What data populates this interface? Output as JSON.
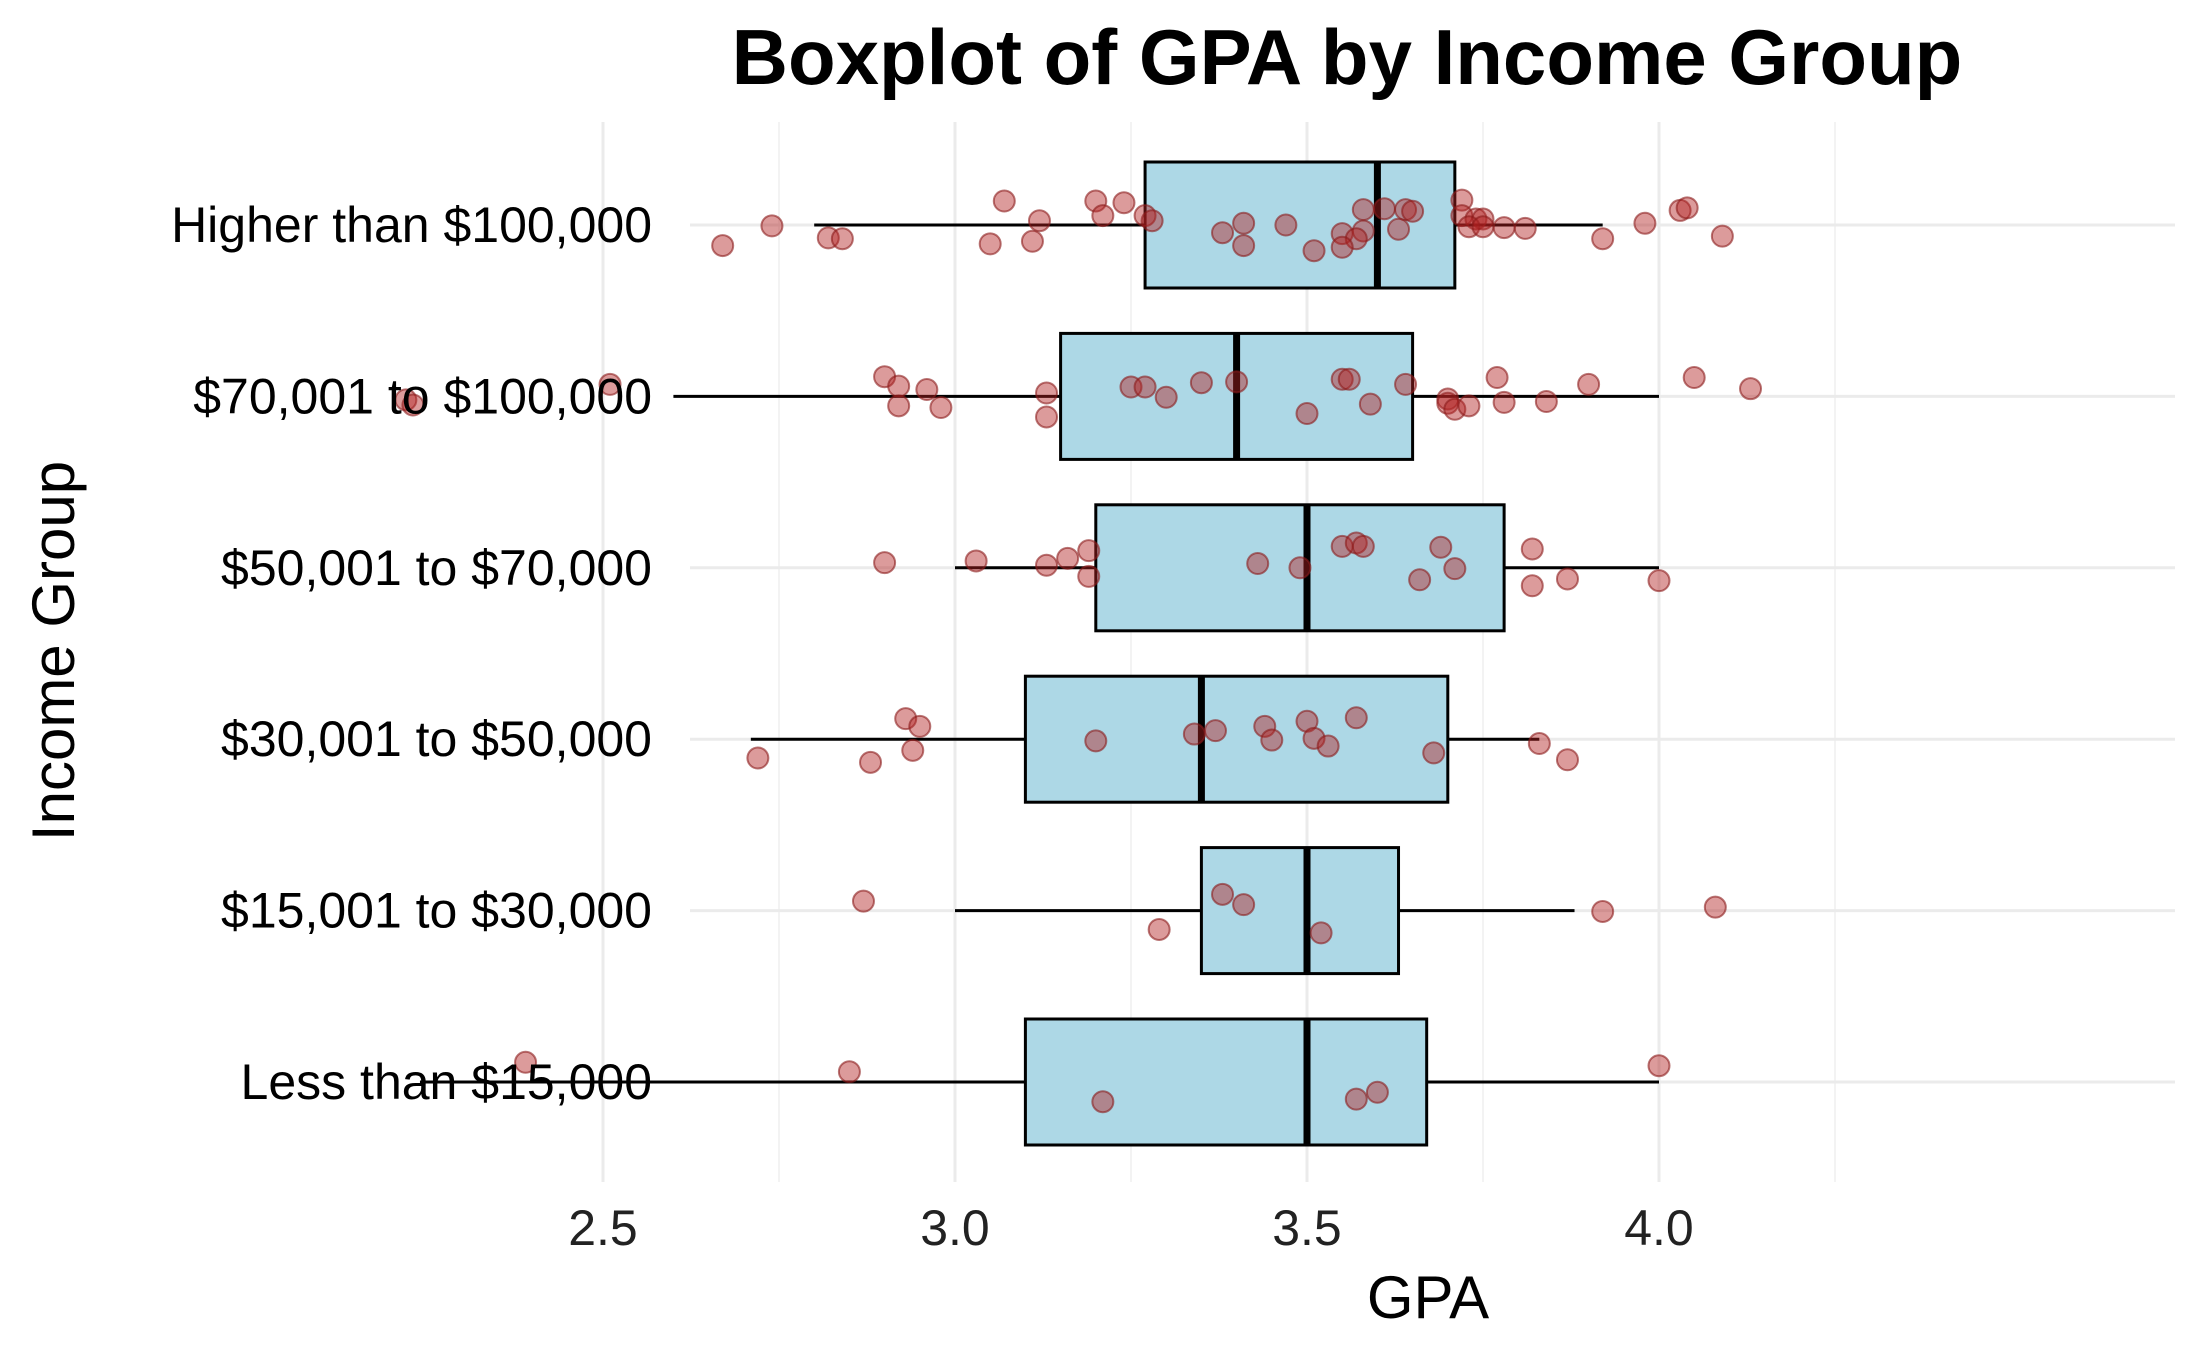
{
  "chart_data": {
    "type": "boxplot",
    "title": "Boxplot of GPA by Income Group",
    "xlabel": "GPA",
    "ylabel": "Income Group",
    "xlim": [
      2.2,
      4.22
    ],
    "xticks": [
      2.5,
      3.0,
      3.5,
      4.0
    ],
    "xtick_labels": [
      "2.5",
      "3.0",
      "3.5",
      "4.0"
    ],
    "grid": true,
    "legend": "none",
    "colors": {
      "box_fill": "#add8e6",
      "point_fill": "#b22222",
      "point_opacity": 0.45
    },
    "groups": [
      {
        "name": "Higher than $100,000",
        "whisker_low": 2.8,
        "q1": 3.27,
        "median": 3.6,
        "q3": 3.71,
        "whisker_high": 3.92,
        "points": [
          {
            "x": 3.07,
            "j": -0.28
          },
          {
            "x": 3.2,
            "j": -0.28
          },
          {
            "x": 3.24,
            "j": -0.26
          },
          {
            "x": 3.21,
            "j": -0.11
          },
          {
            "x": 3.27,
            "j": -0.11
          },
          {
            "x": 3.28,
            "j": -0.05
          },
          {
            "x": 2.74,
            "j": 0.01
          },
          {
            "x": 3.12,
            "j": -0.05
          },
          {
            "x": 2.82,
            "j": 0.15
          },
          {
            "x": 2.84,
            "j": 0.16
          },
          {
            "x": 2.67,
            "j": 0.24
          },
          {
            "x": 3.05,
            "j": 0.22
          },
          {
            "x": 3.11,
            "j": 0.19
          },
          {
            "x": 3.41,
            "j": -0.02
          },
          {
            "x": 3.47,
            "j": 0.0
          },
          {
            "x": 3.38,
            "j": 0.09
          },
          {
            "x": 3.41,
            "j": 0.24
          },
          {
            "x": 3.51,
            "j": 0.3
          },
          {
            "x": 3.55,
            "j": 0.1
          },
          {
            "x": 3.58,
            "j": 0.07
          },
          {
            "x": 3.57,
            "j": 0.16
          },
          {
            "x": 3.55,
            "j": 0.26
          },
          {
            "x": 3.58,
            "j": -0.18
          },
          {
            "x": 3.61,
            "j": -0.19
          },
          {
            "x": 3.64,
            "j": -0.18
          },
          {
            "x": 3.65,
            "j": -0.16
          },
          {
            "x": 3.63,
            "j": 0.05
          },
          {
            "x": 3.72,
            "j": -0.29
          },
          {
            "x": 3.72,
            "j": -0.11
          },
          {
            "x": 3.74,
            "j": -0.07
          },
          {
            "x": 3.75,
            "j": -0.07
          },
          {
            "x": 3.73,
            "j": 0.02
          },
          {
            "x": 3.75,
            "j": 0.02
          },
          {
            "x": 3.78,
            "j": 0.03
          },
          {
            "x": 3.81,
            "j": 0.04
          },
          {
            "x": 3.92,
            "j": 0.16
          },
          {
            "x": 3.98,
            "j": -0.02
          },
          {
            "x": 4.03,
            "j": -0.17
          },
          {
            "x": 4.04,
            "j": -0.2
          },
          {
            "x": 4.09,
            "j": 0.13
          }
        ]
      },
      {
        "name": "$70,001 to $100,000",
        "whisker_low": 2.6,
        "q1": 3.15,
        "median": 3.4,
        "q3": 3.65,
        "whisker_high": 4.0,
        "points": [
          {
            "x": 2.22,
            "j": 0.04
          },
          {
            "x": 2.23,
            "j": 0.1
          },
          {
            "x": 2.51,
            "j": -0.14
          },
          {
            "x": 2.9,
            "j": -0.23
          },
          {
            "x": 2.92,
            "j": -0.12
          },
          {
            "x": 2.96,
            "j": -0.08
          },
          {
            "x": 2.92,
            "j": 0.11
          },
          {
            "x": 2.98,
            "j": 0.13
          },
          {
            "x": 3.13,
            "j": -0.04
          },
          {
            "x": 3.13,
            "j": 0.24
          },
          {
            "x": 3.25,
            "j": -0.11
          },
          {
            "x": 3.27,
            "j": -0.11
          },
          {
            "x": 3.3,
            "j": 0.01
          },
          {
            "x": 3.35,
            "j": -0.16
          },
          {
            "x": 3.4,
            "j": -0.17
          },
          {
            "x": 3.55,
            "j": -0.2
          },
          {
            "x": 3.56,
            "j": -0.2
          },
          {
            "x": 3.5,
            "j": 0.2
          },
          {
            "x": 3.59,
            "j": 0.09
          },
          {
            "x": 3.64,
            "j": -0.14
          },
          {
            "x": 3.7,
            "j": 0.03
          },
          {
            "x": 3.7,
            "j": 0.08
          },
          {
            "x": 3.71,
            "j": 0.15
          },
          {
            "x": 3.73,
            "j": 0.11
          },
          {
            "x": 3.77,
            "j": -0.22
          },
          {
            "x": 3.78,
            "j": 0.07
          },
          {
            "x": 3.84,
            "j": 0.06
          },
          {
            "x": 3.9,
            "j": -0.14
          },
          {
            "x": 4.05,
            "j": -0.22
          },
          {
            "x": 4.13,
            "j": -0.09
          }
        ]
      },
      {
        "name": "$50,001 to $70,000",
        "whisker_low": 3.0,
        "q1": 3.2,
        "median": 3.5,
        "q3": 3.78,
        "whisker_high": 4.0,
        "points": [
          {
            "x": 2.9,
            "j": -0.06
          },
          {
            "x": 3.03,
            "j": -0.08
          },
          {
            "x": 3.13,
            "j": -0.03
          },
          {
            "x": 3.16,
            "j": -0.11
          },
          {
            "x": 3.19,
            "j": -0.2
          },
          {
            "x": 3.19,
            "j": 0.1
          },
          {
            "x": 3.43,
            "j": -0.05
          },
          {
            "x": 3.49,
            "j": 0.0
          },
          {
            "x": 3.55,
            "j": -0.25
          },
          {
            "x": 3.57,
            "j": -0.29
          },
          {
            "x": 3.58,
            "j": -0.25
          },
          {
            "x": 3.66,
            "j": 0.14
          },
          {
            "x": 3.69,
            "j": -0.24
          },
          {
            "x": 3.71,
            "j": 0.01
          },
          {
            "x": 3.82,
            "j": -0.22
          },
          {
            "x": 3.82,
            "j": 0.21
          },
          {
            "x": 3.87,
            "j": 0.13
          },
          {
            "x": 4.0,
            "j": 0.15
          }
        ]
      },
      {
        "name": "$30,001 to $50,000",
        "whisker_low": 2.71,
        "q1": 3.1,
        "median": 3.35,
        "q3": 3.7,
        "whisker_high": 3.83,
        "points": [
          {
            "x": 2.93,
            "j": -0.24
          },
          {
            "x": 2.95,
            "j": -0.15
          },
          {
            "x": 2.72,
            "j": 0.22
          },
          {
            "x": 2.94,
            "j": 0.13
          },
          {
            "x": 2.88,
            "j": 0.27
          },
          {
            "x": 3.2,
            "j": 0.02
          },
          {
            "x": 3.34,
            "j": -0.06
          },
          {
            "x": 3.37,
            "j": -0.1
          },
          {
            "x": 3.44,
            "j": -0.15
          },
          {
            "x": 3.45,
            "j": 0.01
          },
          {
            "x": 3.5,
            "j": -0.21
          },
          {
            "x": 3.51,
            "j": -0.01
          },
          {
            "x": 3.53,
            "j": 0.08
          },
          {
            "x": 3.57,
            "j": -0.25
          },
          {
            "x": 3.68,
            "j": 0.16
          },
          {
            "x": 3.83,
            "j": 0.05
          },
          {
            "x": 3.87,
            "j": 0.24
          }
        ]
      },
      {
        "name": "$15,001 to $30,000",
        "whisker_low": 3.0,
        "q1": 3.35,
        "median": 3.5,
        "q3": 3.63,
        "whisker_high": 3.88,
        "points": [
          {
            "x": 2.87,
            "j": -0.11
          },
          {
            "x": 3.38,
            "j": -0.19
          },
          {
            "x": 3.41,
            "j": -0.07
          },
          {
            "x": 3.29,
            "j": 0.22
          },
          {
            "x": 3.52,
            "j": 0.26
          },
          {
            "x": 3.92,
            "j": 0.01
          },
          {
            "x": 4.08,
            "j": -0.04
          }
        ]
      },
      {
        "name": "Less than $15,000",
        "whisker_low": 2.24,
        "q1": 3.1,
        "median": 3.5,
        "q3": 3.67,
        "whisker_high": 4.0,
        "points": [
          {
            "x": 2.39,
            "j": -0.23
          },
          {
            "x": 2.85,
            "j": -0.12
          },
          {
            "x": 3.21,
            "j": 0.23
          },
          {
            "x": 3.57,
            "j": 0.2
          },
          {
            "x": 3.6,
            "j": 0.12
          },
          {
            "x": 4.0,
            "j": -0.19
          }
        ]
      }
    ]
  }
}
